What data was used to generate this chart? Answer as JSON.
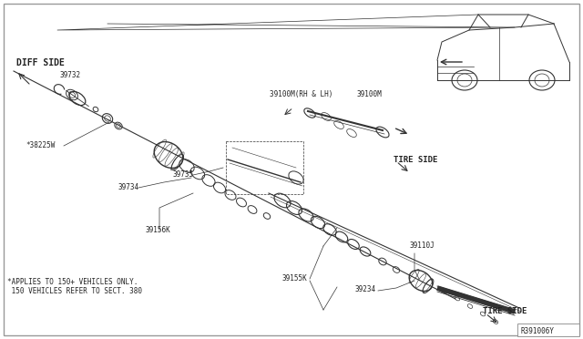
{
  "bg_color": "#ffffff",
  "line_color": "#333333",
  "text_color": "#222222",
  "diagram_ref": "R391006Y",
  "labels": {
    "diff_side": "DIFF SIDE",
    "tire_side_1": "TIRE SIDE",
    "tire_side_2": "TIRE SIDE",
    "part_39732": "39732",
    "part_38225W": "*38225W",
    "part_39734": "39734",
    "part_39735": "39735",
    "part_39156K": "39156K",
    "part_39100M_label": "39100M(RH & LH)",
    "part_39100M": "39100M",
    "part_39110J": "39110J",
    "part_39155K": "39155K",
    "part_39234": "39234",
    "footnote_line1": "*APPLIES TO 150+ VEHICLES ONLY.",
    "footnote_line2": " 150 VEHICLES REFER TO SECT. 380"
  }
}
